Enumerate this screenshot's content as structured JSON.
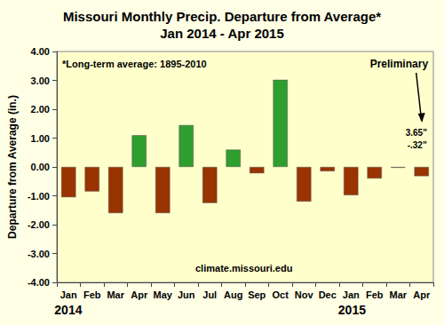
{
  "chart_data": {
    "type": "bar",
    "title": "Missouri Monthly Precip. Departure from Average*",
    "subtitle": "Jan 2014 - Apr 2015",
    "y_label": "Departure from Average (in.)",
    "categories": [
      "Jan",
      "Feb",
      "Mar",
      "Apr",
      "May",
      "Jun",
      "Jul",
      "Aug",
      "Sep",
      "Oct",
      "Nov",
      "Dec",
      "Jan",
      "Feb",
      "Mar",
      "Apr"
    ],
    "values": [
      -1.05,
      -0.85,
      -1.6,
      1.1,
      -1.6,
      1.45,
      -1.25,
      0.6,
      -0.22,
      3.02,
      -1.2,
      -0.15,
      -0.98,
      -0.4,
      -0.03,
      -0.32
    ],
    "colors": [
      "#993300",
      "#993300",
      "#993300",
      "#2E9E2E",
      "#993300",
      "#2E9E2E",
      "#993300",
      "#2E9E2E",
      "#993300",
      "#2E9E2E",
      "#993300",
      "#993300",
      "#993300",
      "#993300",
      "#993300",
      "#993300"
    ],
    "ylim": [
      -4,
      4
    ],
    "yticks": [
      {
        "value": -4,
        "label": "-4.00"
      },
      {
        "value": -3,
        "label": "-3.00"
      },
      {
        "value": -2,
        "label": "-2.00"
      },
      {
        "value": -1,
        "label": "-1.00"
      },
      {
        "value": 0,
        "label": "0.00"
      },
      {
        "value": 1,
        "label": "1.00"
      },
      {
        "value": 2,
        "label": "2.00"
      },
      {
        "value": 3,
        "label": "3.00"
      },
      {
        "value": 4,
        "label": "4.00"
      }
    ],
    "year_labels": [
      "2014",
      "2015"
    ],
    "annotations": [
      "*Long-term average: 1895-2010",
      "Preliminary",
      "3.65\"",
      "-.32\"",
      "climate.missouri.edu"
    ],
    "grid": false,
    "data_labels": false
  }
}
